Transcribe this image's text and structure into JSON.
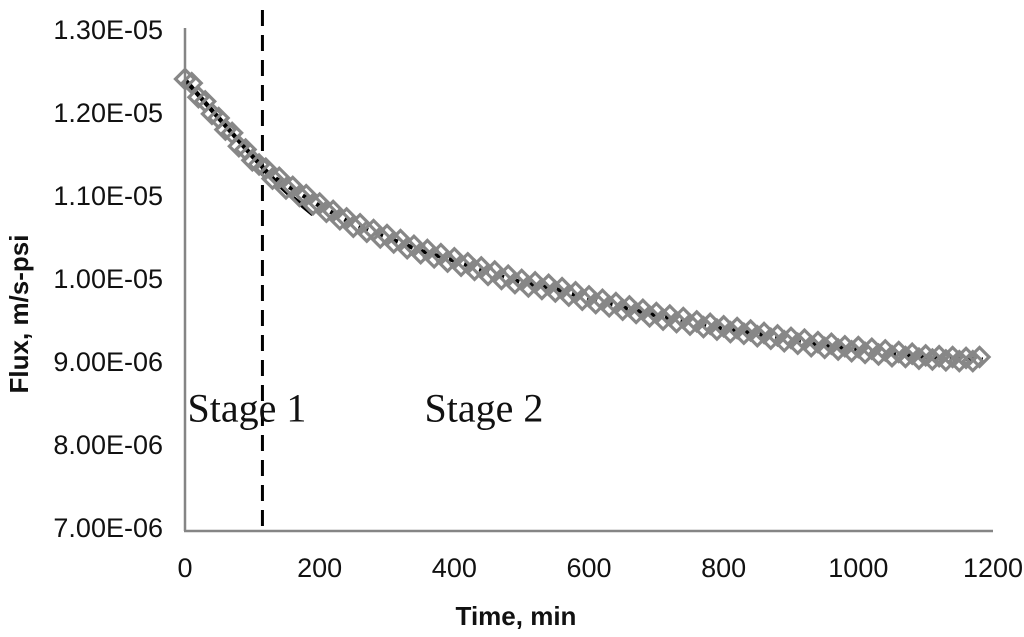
{
  "page": {
    "background": "#ffffff"
  },
  "chart_data": {
    "type": "scatter",
    "title": "",
    "xlabel": "Time, min",
    "ylabel": "Flux, m/s-psi",
    "xlim": [
      0,
      1200
    ],
    "ylim": [
      7e-06,
      1.3e-05
    ],
    "grid": false,
    "legend": "none",
    "axis_color": "#858585",
    "text_color": "#111111",
    "xticks": [
      {
        "v": 0,
        "label": "0"
      },
      {
        "v": 200,
        "label": "200"
      },
      {
        "v": 400,
        "label": "400"
      },
      {
        "v": 600,
        "label": "600"
      },
      {
        "v": 800,
        "label": "800"
      },
      {
        "v": 1000,
        "label": "1000"
      },
      {
        "v": 1200,
        "label": "1200"
      }
    ],
    "yticks": [
      {
        "v": 1.3e-05,
        "label": "1.30E-05"
      },
      {
        "v": 1.2e-05,
        "label": "1.20E-05"
      },
      {
        "v": 1.1e-05,
        "label": "1.10E-05"
      },
      {
        "v": 1e-05,
        "label": "1.00E-05"
      },
      {
        "v": 9e-06,
        "label": "9.00E-06"
      },
      {
        "v": 8e-06,
        "label": "8.00E-06"
      },
      {
        "v": 7e-06,
        "label": "7.00E-06"
      }
    ],
    "stage_divider": {
      "t": 115,
      "style": "dashed",
      "color": "#000000"
    },
    "annotations": [
      {
        "text": "Stage 1",
        "t": 92,
        "flux": 8.45e-06
      },
      {
        "text": "Stage 2",
        "t": 444,
        "flux": 8.45e-06
      }
    ],
    "series": [
      {
        "name": "flux-data",
        "kind": "scatter",
        "marker": "open-diamond",
        "color": "#878787",
        "points": [
          [
            0,
            1.241e-05
          ],
          [
            10,
            1.236e-05
          ],
          [
            20,
            1.219e-05
          ],
          [
            30,
            1.214e-05
          ],
          [
            40,
            1.199e-05
          ],
          [
            50,
            1.194e-05
          ],
          [
            60,
            1.18e-05
          ],
          [
            70,
            1.176e-05
          ],
          [
            80,
            1.16e-05
          ],
          [
            90,
            1.156e-05
          ],
          [
            100,
            1.143e-05
          ],
          [
            110,
            1.138e-05
          ],
          [
            120,
            1.133e-05
          ],
          [
            130,
            1.121e-05
          ],
          [
            140,
            1.122e-05
          ],
          [
            150,
            1.109e-05
          ],
          [
            160,
            1.111e-05
          ],
          [
            170,
            1.1e-05
          ],
          [
            180,
            1.101e-05
          ],
          [
            190,
            1.09e-05
          ],
          [
            200,
            1.091e-05
          ],
          [
            210,
            1.081e-05
          ],
          [
            220,
            1.082e-05
          ],
          [
            230,
            1.072e-05
          ],
          [
            240,
            1.073e-05
          ],
          [
            250,
            1.063e-05
          ],
          [
            260,
            1.066e-05
          ],
          [
            270,
            1.057e-05
          ],
          [
            280,
            1.059e-05
          ],
          [
            290,
            1.05e-05
          ],
          [
            300,
            1.053e-05
          ],
          [
            310,
            1.044e-05
          ],
          [
            320,
            1.047e-05
          ],
          [
            330,
            1.037e-05
          ],
          [
            340,
            1.04e-05
          ],
          [
            350,
            1.031e-05
          ],
          [
            360,
            1.035e-05
          ],
          [
            370,
            1.026e-05
          ],
          [
            380,
            1.03e-05
          ],
          [
            390,
            1.021e-05
          ],
          [
            400,
            1.025e-05
          ],
          [
            410,
            1.016e-05
          ],
          [
            420,
            1.019e-05
          ],
          [
            430,
            1.011e-05
          ],
          [
            440,
            1.014e-05
          ],
          [
            450,
            1.005e-05
          ],
          [
            460,
            1.009e-05
          ],
          [
            470,
            1e-05
          ],
          [
            480,
            1.004e-05
          ],
          [
            490,
            9.95e-06
          ],
          [
            500,
            9.99e-06
          ],
          [
            510,
            9.91e-06
          ],
          [
            520,
            9.96e-06
          ],
          [
            530,
            9.88e-06
          ],
          [
            540,
            9.93e-06
          ],
          [
            550,
            9.85e-06
          ],
          [
            560,
            9.89e-06
          ],
          [
            570,
            9.8e-06
          ],
          [
            580,
            9.84e-06
          ],
          [
            590,
            9.75e-06
          ],
          [
            600,
            9.79e-06
          ],
          [
            610,
            9.71e-06
          ],
          [
            620,
            9.75e-06
          ],
          [
            630,
            9.67e-06
          ],
          [
            640,
            9.71e-06
          ],
          [
            650,
            9.63e-06
          ],
          [
            660,
            9.67e-06
          ],
          [
            670,
            9.59e-06
          ],
          [
            680,
            9.63e-06
          ],
          [
            690,
            9.55e-06
          ],
          [
            700,
            9.59e-06
          ],
          [
            710,
            9.51e-06
          ],
          [
            720,
            9.56e-06
          ],
          [
            730,
            9.48e-06
          ],
          [
            740,
            9.53e-06
          ],
          [
            750,
            9.45e-06
          ],
          [
            760,
            9.49e-06
          ],
          [
            770,
            9.42e-06
          ],
          [
            780,
            9.46e-06
          ],
          [
            790,
            9.39e-06
          ],
          [
            800,
            9.43e-06
          ],
          [
            810,
            9.36e-06
          ],
          [
            820,
            9.41e-06
          ],
          [
            830,
            9.34e-06
          ],
          [
            840,
            9.38e-06
          ],
          [
            850,
            9.31e-06
          ],
          [
            860,
            9.35e-06
          ],
          [
            870,
            9.28e-06
          ],
          [
            880,
            9.32e-06
          ],
          [
            890,
            9.25e-06
          ],
          [
            900,
            9.29e-06
          ],
          [
            910,
            9.22e-06
          ],
          [
            920,
            9.27e-06
          ],
          [
            930,
            9.19e-06
          ],
          [
            940,
            9.24e-06
          ],
          [
            950,
            9.17e-06
          ],
          [
            960,
            9.22e-06
          ],
          [
            970,
            9.15e-06
          ],
          [
            980,
            9.19e-06
          ],
          [
            990,
            9.13e-06
          ],
          [
            1000,
            9.18e-06
          ],
          [
            1010,
            9.11e-06
          ],
          [
            1020,
            9.16e-06
          ],
          [
            1030,
            9.09e-06
          ],
          [
            1040,
            9.14e-06
          ],
          [
            1050,
            9.07e-06
          ],
          [
            1060,
            9.12e-06
          ],
          [
            1070,
            9.06e-06
          ],
          [
            1080,
            9.1e-06
          ],
          [
            1090,
            9.04e-06
          ],
          [
            1100,
            9.08e-06
          ],
          [
            1110,
            9.03e-06
          ],
          [
            1120,
            9.07e-06
          ],
          [
            1130,
            9.02e-06
          ],
          [
            1140,
            9.06e-06
          ],
          [
            1150,
            9.01e-06
          ],
          [
            1160,
            9.05e-06
          ],
          [
            1170,
            9.01e-06
          ],
          [
            1180,
            9.06e-06
          ]
        ]
      },
      {
        "name": "stage1-fit",
        "kind": "line",
        "style": "solid",
        "color": "#000000",
        "points": [
          [
            0,
            1.24e-05
          ],
          [
            25,
            1.217e-05
          ],
          [
            50,
            1.194e-05
          ],
          [
            75,
            1.171e-05
          ],
          [
            100,
            1.148e-05
          ],
          [
            115,
            1.135e-05
          ],
          [
            135,
            1.117e-05
          ],
          [
            160,
            1.098e-05
          ],
          [
            190,
            1.078e-05
          ]
        ]
      },
      {
        "name": "stage2-fit",
        "kind": "line",
        "style": "dashed",
        "color": "#000000",
        "points": [
          [
            115,
            1.132e-05
          ],
          [
            150,
            1.113e-05
          ],
          [
            200,
            1.088e-05
          ],
          [
            250,
            1.066e-05
          ],
          [
            300,
            1.05e-05
          ],
          [
            350,
            1.034e-05
          ],
          [
            400,
            1.022e-05
          ],
          [
            450,
            1.008e-05
          ],
          [
            500,
            9.96e-06
          ],
          [
            550,
            9.88e-06
          ],
          [
            600,
            9.76e-06
          ],
          [
            650,
            9.66e-06
          ],
          [
            700,
            9.56e-06
          ],
          [
            750,
            9.48e-06
          ],
          [
            800,
            9.4e-06
          ],
          [
            850,
            9.34e-06
          ],
          [
            900,
            9.26e-06
          ],
          [
            950,
            9.2e-06
          ],
          [
            1000,
            9.15e-06
          ],
          [
            1050,
            9.1e-06
          ],
          [
            1100,
            9.06e-06
          ],
          [
            1150,
            9.04e-06
          ],
          [
            1185,
            9.03e-06
          ]
        ]
      }
    ]
  }
}
